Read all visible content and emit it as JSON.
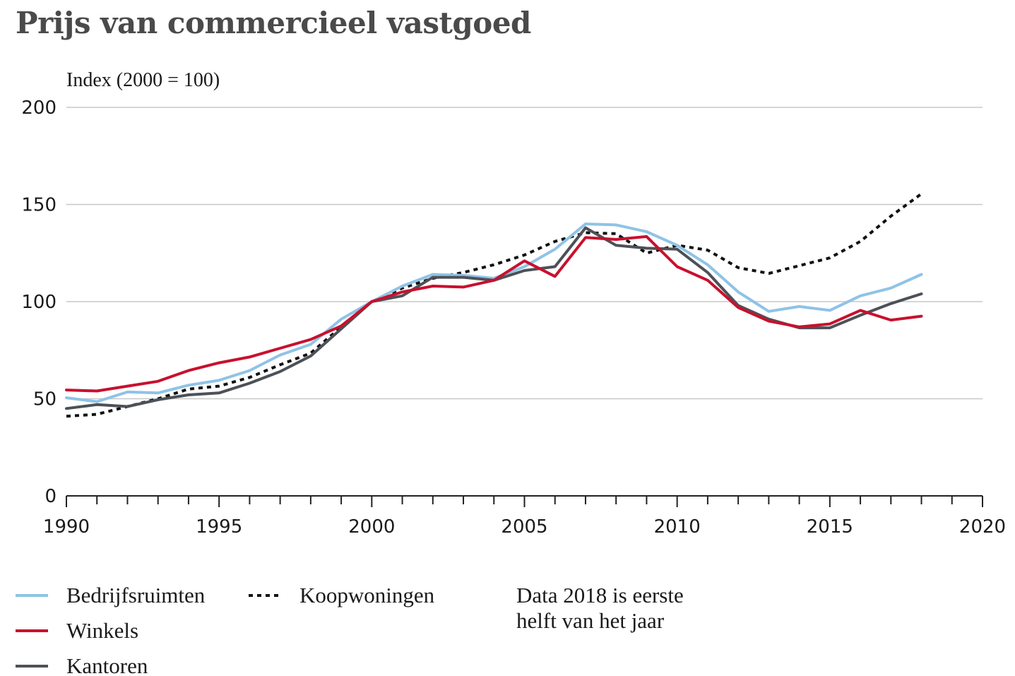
{
  "chart_data": {
    "type": "line",
    "title": "Prijs van commercieel vastgoed",
    "ylabel": "Index (2000 = 100)",
    "xlabel": "",
    "xlim": [
      1990,
      2020
    ],
    "ylim": [
      0,
      200
    ],
    "x_ticks": [
      1990,
      1995,
      2000,
      2005,
      2010,
      2015,
      2020
    ],
    "y_ticks": [
      0,
      50,
      100,
      150,
      200
    ],
    "grid": "horizontal",
    "legend_position": "bottom",
    "note": "Data 2018 is eerste helft van het jaar",
    "x": [
      1990,
      1991,
      1992,
      1993,
      1994,
      1995,
      1996,
      1997,
      1998,
      1999,
      2000,
      2001,
      2002,
      2003,
      2004,
      2005,
      2006,
      2007,
      2008,
      2009,
      2010,
      2011,
      2012,
      2013,
      2014,
      2015,
      2016,
      2017,
      2018
    ],
    "series": [
      {
        "name": "Bedrijfsruimten",
        "color": "#8fc3e6",
        "dash": "solid",
        "values": [
          50.5,
          48.5,
          53.5,
          53,
          57,
          59.5,
          64.5,
          72.5,
          78,
          91,
          100,
          108,
          114,
          113.5,
          112,
          118,
          127,
          140,
          139.5,
          136,
          129,
          119,
          105,
          95,
          97.5,
          95.5,
          103,
          107,
          114
        ]
      },
      {
        "name": "Winkels",
        "color": "#c8102e",
        "dash": "solid",
        "values": [
          54.5,
          54,
          56.5,
          59,
          64.5,
          68.5,
          71.5,
          76,
          80.5,
          87.5,
          100,
          105,
          108,
          107.5,
          111,
          121,
          113,
          133,
          132,
          133.5,
          118,
          111,
          97,
          90,
          87,
          88.5,
          95.5,
          90.5,
          92.5
        ]
      },
      {
        "name": "Kantoren",
        "color": "#4d5157",
        "dash": "solid",
        "values": [
          45,
          47,
          46,
          49.5,
          52,
          53,
          58,
          64,
          72,
          86,
          100,
          103,
          112.5,
          112.5,
          111,
          116,
          118,
          138,
          129,
          127.5,
          127,
          115,
          98,
          91,
          86.5,
          86.5,
          93,
          99,
          104
        ]
      },
      {
        "name": "Koopwoningen",
        "color": "#111111",
        "dash": "dotted",
        "values": [
          41,
          42,
          46,
          50,
          55,
          56.5,
          61,
          67.5,
          73.5,
          87,
          100,
          107,
          112,
          115,
          119,
          124,
          131,
          135.5,
          135,
          125,
          129,
          126.5,
          117.5,
          114.5,
          118.5,
          122.5,
          131,
          144,
          155.5
        ]
      }
    ]
  }
}
